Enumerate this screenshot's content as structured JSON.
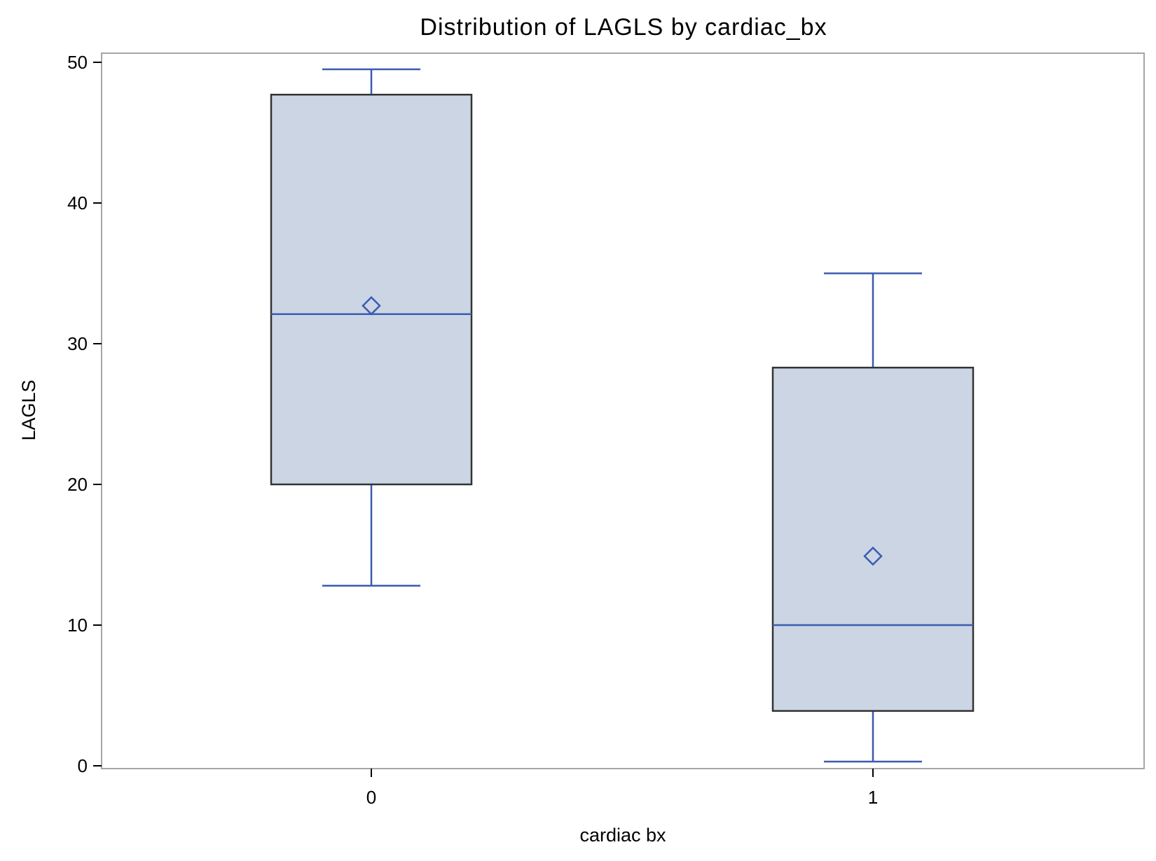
{
  "chart_data": {
    "type": "boxplot",
    "title": "Distribution of LAGLS by cardiac_bx",
    "xlabel": "cardiac bx",
    "ylabel": "LAGLS",
    "ylim": [
      0,
      50
    ],
    "yticks": [
      0,
      10,
      20,
      30,
      40,
      50
    ],
    "grid": false,
    "categories": [
      "0",
      "1"
    ],
    "boxes": [
      {
        "category": "0",
        "whisker_low": 12.8,
        "q1": 20.0,
        "median": 32.1,
        "mean": 32.7,
        "q3": 47.7,
        "whisker_high": 49.5
      },
      {
        "category": "1",
        "whisker_low": 0.3,
        "q1": 3.9,
        "median": 10.0,
        "mean": 14.9,
        "q3": 28.3,
        "whisker_high": 35.0
      }
    ]
  },
  "colors": {
    "box_fill": "#cbd5e4",
    "box_border": "#333333",
    "stat_line": "#3a5bb0",
    "frame": "#a6a6a6",
    "text": "#000000"
  }
}
